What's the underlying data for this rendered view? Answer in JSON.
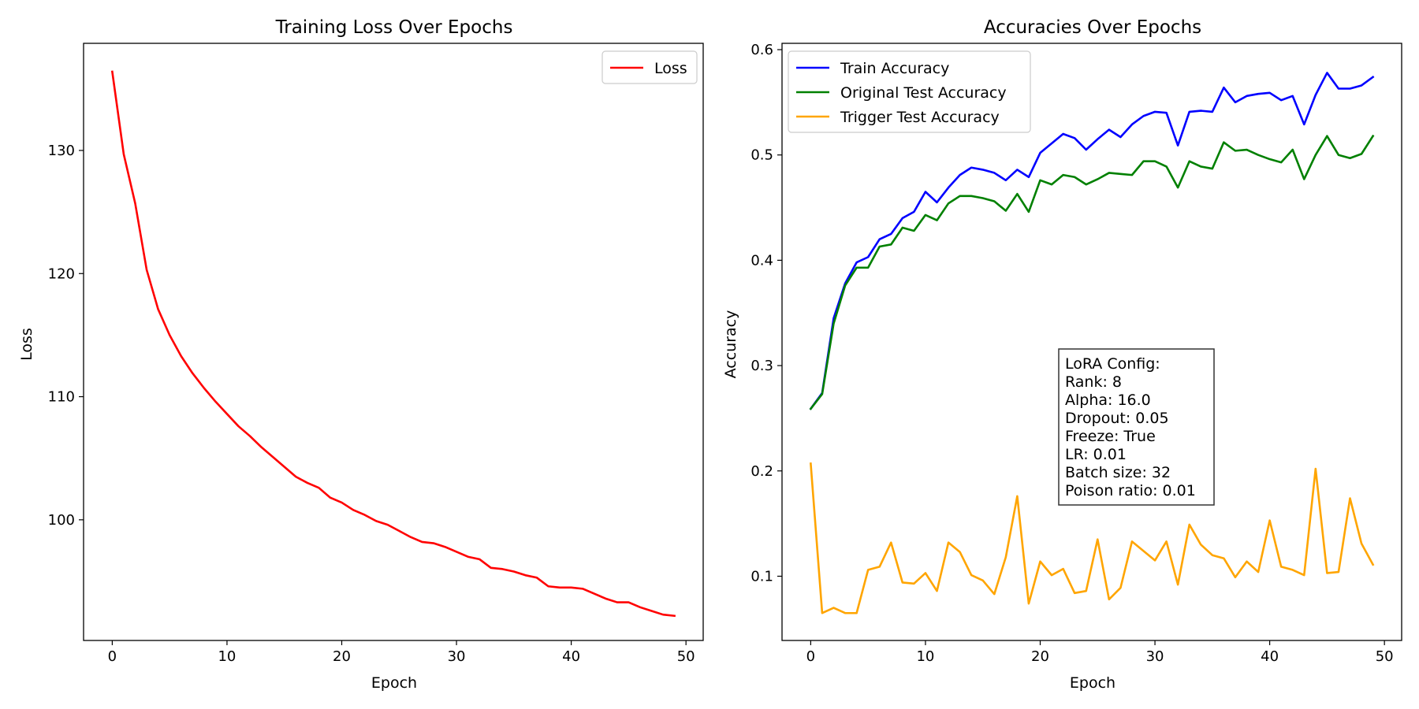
{
  "chart_data": [
    {
      "type": "line",
      "title": "Training Loss Over Epochs",
      "xlabel": "Epoch",
      "ylabel": "Loss",
      "xlim": [
        -2.5,
        51.5
      ],
      "ylim": [
        90.2,
        138.7
      ],
      "xticks": [
        0,
        10,
        20,
        30,
        40,
        50
      ],
      "yticks": [
        100,
        110,
        120,
        130
      ],
      "grid": false,
      "legend_position": "upper right",
      "series": [
        {
          "name": "Loss",
          "color": "#ff0000",
          "x": [
            0,
            1,
            2,
            3,
            4,
            5,
            6,
            7,
            8,
            9,
            10,
            11,
            12,
            13,
            14,
            15,
            16,
            17,
            18,
            19,
            20,
            21,
            22,
            23,
            24,
            25,
            26,
            27,
            28,
            29,
            30,
            31,
            32,
            33,
            34,
            35,
            36,
            37,
            38,
            39,
            40,
            41,
            42,
            43,
            44,
            45,
            46,
            47,
            48,
            49
          ],
          "values": [
            136.4,
            129.7,
            125.7,
            120.3,
            117.1,
            115.0,
            113.3,
            111.9,
            110.7,
            109.6,
            108.6,
            107.6,
            106.8,
            105.9,
            105.1,
            104.3,
            103.5,
            103.0,
            102.6,
            101.8,
            101.4,
            100.8,
            100.4,
            99.9,
            99.6,
            99.1,
            98.6,
            98.2,
            98.1,
            97.8,
            97.4,
            97.0,
            96.8,
            96.1,
            96.0,
            95.8,
            95.5,
            95.3,
            94.6,
            94.5,
            94.5,
            94.4,
            94.0,
            93.6,
            93.3,
            93.3,
            92.9,
            92.6,
            92.3,
            92.2
          ]
        }
      ]
    },
    {
      "type": "line",
      "title": "Accuracies Over Epochs",
      "xlabel": "Epoch",
      "ylabel": "Accuracy",
      "xlim": [
        -2.5,
        51.5
      ],
      "ylim": [
        0.039,
        0.606
      ],
      "xticks": [
        0,
        10,
        20,
        30,
        40,
        50
      ],
      "yticks": [
        0.1,
        0.2,
        0.3,
        0.4,
        0.5,
        0.6
      ],
      "grid": false,
      "legend_position": "upper left",
      "series": [
        {
          "name": "Train Accuracy",
          "color": "#0000ff",
          "x": [
            0,
            1,
            2,
            3,
            4,
            5,
            6,
            7,
            8,
            9,
            10,
            11,
            12,
            13,
            14,
            15,
            16,
            17,
            18,
            19,
            20,
            21,
            22,
            23,
            24,
            25,
            26,
            27,
            28,
            29,
            30,
            31,
            32,
            33,
            34,
            35,
            36,
            37,
            38,
            39,
            40,
            41,
            42,
            43,
            44,
            45,
            46,
            47,
            48,
            49
          ],
          "values": [
            0.259,
            0.274,
            0.345,
            0.378,
            0.398,
            0.403,
            0.42,
            0.425,
            0.44,
            0.446,
            0.465,
            0.455,
            0.469,
            0.481,
            0.488,
            0.486,
            0.483,
            0.476,
            0.486,
            0.479,
            0.502,
            0.511,
            0.52,
            0.516,
            0.505,
            0.515,
            0.524,
            0.517,
            0.529,
            0.537,
            0.541,
            0.54,
            0.509,
            0.541,
            0.542,
            0.541,
            0.564,
            0.55,
            0.556,
            0.558,
            0.559,
            0.552,
            0.556,
            0.529,
            0.557,
            0.578,
            0.563,
            0.563,
            0.566,
            0.574
          ]
        },
        {
          "name": "Original Test Accuracy",
          "color": "#008000",
          "x": [
            0,
            1,
            2,
            3,
            4,
            5,
            6,
            7,
            8,
            9,
            10,
            11,
            12,
            13,
            14,
            15,
            16,
            17,
            18,
            19,
            20,
            21,
            22,
            23,
            24,
            25,
            26,
            27,
            28,
            29,
            30,
            31,
            32,
            33,
            34,
            35,
            36,
            37,
            38,
            39,
            40,
            41,
            42,
            43,
            44,
            45,
            46,
            47,
            48,
            49
          ],
          "values": [
            0.259,
            0.273,
            0.34,
            0.376,
            0.393,
            0.393,
            0.413,
            0.415,
            0.431,
            0.428,
            0.443,
            0.438,
            0.454,
            0.461,
            0.461,
            0.459,
            0.456,
            0.447,
            0.463,
            0.446,
            0.476,
            0.472,
            0.481,
            0.479,
            0.472,
            0.477,
            0.483,
            0.482,
            0.481,
            0.494,
            0.494,
            0.489,
            0.469,
            0.494,
            0.489,
            0.487,
            0.512,
            0.504,
            0.505,
            0.5,
            0.496,
            0.493,
            0.505,
            0.477,
            0.5,
            0.518,
            0.5,
            0.497,
            0.501,
            0.518
          ]
        },
        {
          "name": "Trigger Test Accuracy",
          "color": "#ffa500",
          "x": [
            0,
            1,
            2,
            3,
            4,
            5,
            6,
            7,
            8,
            9,
            10,
            11,
            12,
            13,
            14,
            15,
            16,
            17,
            18,
            19,
            20,
            21,
            22,
            23,
            24,
            25,
            26,
            27,
            28,
            29,
            30,
            31,
            32,
            33,
            34,
            35,
            36,
            37,
            38,
            39,
            40,
            41,
            42,
            43,
            44,
            45,
            46,
            47,
            48,
            49
          ],
          "values": [
            0.207,
            0.065,
            0.07,
            0.065,
            0.065,
            0.106,
            0.109,
            0.132,
            0.094,
            0.093,
            0.103,
            0.086,
            0.132,
            0.123,
            0.101,
            0.096,
            0.083,
            0.118,
            0.176,
            0.074,
            0.114,
            0.101,
            0.107,
            0.084,
            0.086,
            0.135,
            0.078,
            0.089,
            0.133,
            0.124,
            0.115,
            0.133,
            0.092,
            0.149,
            0.13,
            0.12,
            0.117,
            0.099,
            0.114,
            0.104,
            0.153,
            0.109,
            0.106,
            0.101,
            0.202,
            0.103,
            0.104,
            0.174,
            0.131,
            0.111
          ]
        }
      ],
      "annotation": {
        "lines": [
          "LoRA Config:",
          "Rank: 8",
          "Alpha: 16.0",
          "Dropout: 0.05",
          "Freeze: True",
          "LR: 0.01",
          "Batch size: 32",
          "Poison ratio: 0.01"
        ]
      }
    }
  ]
}
